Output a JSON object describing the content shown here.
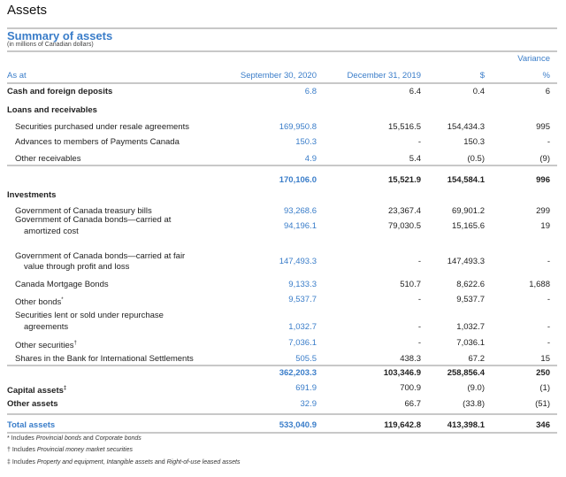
{
  "page_title": "Assets",
  "table_title": "Summary of assets",
  "table_subtitle": "(in millions of Canadian dollars)",
  "header": {
    "variance": "Variance",
    "as_at": "As at",
    "col1": "September 30, 2020",
    "col2": "December 31, 2019",
    "col3": "$",
    "col4": "%"
  },
  "rows": [
    {
      "label": "Cash and foreign deposits",
      "bold": true,
      "values": [
        "6.8",
        "6.4",
        "0.4",
        "6"
      ]
    },
    {
      "label": "Loans and receivables",
      "bold": true,
      "values": []
    },
    {
      "label": "Securities purchased under resale agreements",
      "values": [
        "169,950.8",
        "15,516.5",
        "154,434.3",
        "995"
      ]
    },
    {
      "label": "Advances to members of Payments Canada",
      "values": [
        "150.3",
        "-",
        "150.3",
        "-"
      ]
    },
    {
      "label": "Other receivables",
      "values": [
        "4.9",
        "5.4",
        "(0.5)",
        "(9)"
      ]
    },
    {
      "label": "",
      "subtotal": true,
      "values": [
        "170,106.0",
        "15,521.9",
        "154,584.1",
        "996"
      ]
    },
    {
      "label": "Investments",
      "bold": true,
      "values": []
    },
    {
      "label": "Government of Canada treasury bills",
      "values": [
        "93,268.6",
        "23,367.4",
        "69,901.2",
        "299"
      ]
    },
    {
      "label": "Government of Canada bonds—carried at",
      "label2": "amortized cost",
      "values": [
        "94,196.1",
        "79,030.5",
        "15,165.6",
        "19"
      ]
    },
    {
      "label": "Government of Canada bonds—carried at fair",
      "label2": "value through profit and loss",
      "values": [
        "147,493.3",
        "-",
        "147,493.3",
        "-"
      ]
    },
    {
      "label": "Canada Mortgage Bonds",
      "values": [
        "9,133.3",
        "510.7",
        "8,622.6",
        "1,688"
      ]
    },
    {
      "label": "Other bonds",
      "sup": "*",
      "values": [
        "9,537.7",
        "-",
        "9,537.7",
        "-"
      ]
    },
    {
      "label": "Securities lent or sold under repurchase",
      "label2": "agreements",
      "values": [
        "1,032.7",
        "-",
        "1,032.7",
        "-"
      ]
    },
    {
      "label": "Other securities",
      "sup": "†",
      "values": [
        "7,036.1",
        "-",
        "7,036.1",
        "-"
      ]
    },
    {
      "label": "Shares in the Bank for International Settlements",
      "values": [
        "505.5",
        "438.3",
        "67.2",
        "15"
      ]
    },
    {
      "label": "",
      "subtotal": true,
      "values": [
        "362,203.3",
        "103,346.9",
        "258,856.4",
        "250"
      ]
    },
    {
      "label": "Capital assets",
      "sup": "‡",
      "bold": true,
      "values": [
        "691.9",
        "700.9",
        "(9.0)",
        "(1)"
      ]
    },
    {
      "label": "Other assets",
      "bold": true,
      "values": [
        "32.9",
        "66.7",
        "(33.8)",
        "(51)"
      ]
    },
    {
      "label": "Total assets",
      "total": true,
      "values": [
        "533,040.9",
        "119,642.8",
        "413,398.1",
        "346"
      ]
    }
  ],
  "footnotes": [
    {
      "mark": "*",
      "text": "Includes ",
      "italic": "Provincial bonds",
      "mid": " and ",
      "italic2": "Corporate bonds"
    },
    {
      "mark": "†",
      "text": "Includes ",
      "italic": "Provincial money market securities",
      "mid": "",
      "italic2": ""
    },
    {
      "mark": "‡",
      "text": "Includes ",
      "italic": "Property and equipment, Intangible assets",
      "mid": " and ",
      "italic2": "Right-of-use leased assets"
    }
  ],
  "colors": {
    "accent": "#3a7dc9",
    "rule": "#c8c8c8"
  }
}
